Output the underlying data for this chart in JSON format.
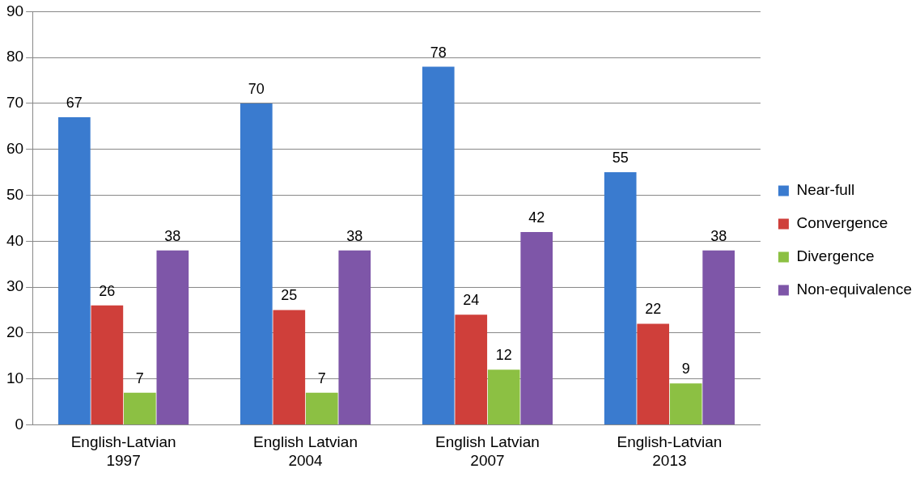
{
  "chart_data": {
    "type": "bar",
    "categories": [
      "English-Latvian 1997",
      "English Latvian 2004",
      "English Latvian 2007",
      "English-Latvian 2013"
    ],
    "series": [
      {
        "name": "Near-full",
        "color": "#3a7bcf",
        "values": [
          67,
          70,
          78,
          55
        ]
      },
      {
        "name": "Convergence",
        "color": "#cf3f3a",
        "values": [
          26,
          25,
          24,
          22
        ]
      },
      {
        "name": "Divergence",
        "color": "#8cc043",
        "values": [
          7,
          7,
          12,
          9
        ]
      },
      {
        "name": "Non-equivalence",
        "color": "#7e56a8",
        "values": [
          38,
          38,
          42,
          38
        ]
      }
    ],
    "ylim": [
      0,
      90
    ],
    "yticks": [
      0,
      10,
      20,
      30,
      40,
      50,
      60,
      70,
      80,
      90
    ],
    "grid": "y",
    "legend": "right",
    "data_labels": true
  }
}
